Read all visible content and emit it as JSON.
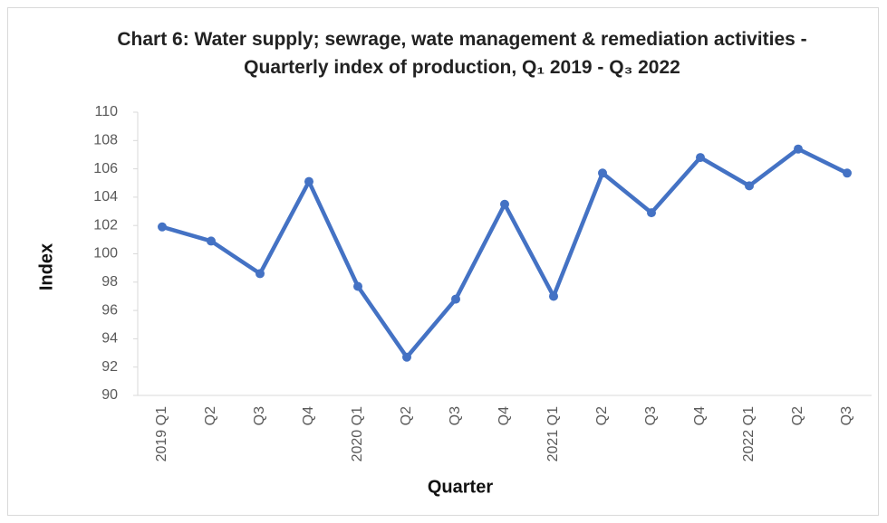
{
  "chart_data": {
    "type": "line",
    "title": "Chart 6: Water supply; sewrage, wate management & remediation activities - Quarterly index of production, Q₁ 2019 - Q₃ 2022",
    "x_label": "Quarter",
    "y_label": "Index",
    "categories": [
      "2019 Q1",
      "Q2",
      "Q3",
      "Q4",
      "2020 Q1",
      "Q2",
      "Q3",
      "Q4",
      "2021 Q1",
      "Q2",
      "Q3",
      "Q4",
      "2022 Q1",
      "Q2",
      "Q3"
    ],
    "series": [
      {
        "name": "Index",
        "color": "#4472c4",
        "values": [
          101.9,
          100.9,
          98.6,
          105.1,
          97.7,
          92.7,
          96.8,
          103.5,
          97.0,
          105.7,
          102.9,
          106.8,
          104.8,
          107.4,
          105.7
        ]
      }
    ],
    "ylim": [
      90,
      110
    ],
    "yticks": [
      90,
      92,
      94,
      96,
      98,
      100,
      102,
      104,
      106,
      108,
      110
    ],
    "grid": false
  }
}
